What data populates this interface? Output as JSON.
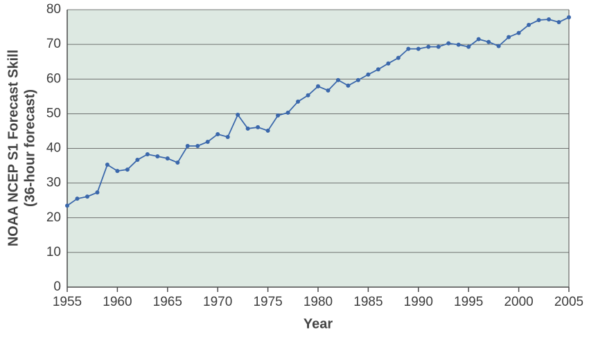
{
  "chart_data": {
    "type": "line",
    "xlabel": "Year",
    "ylabel": [
      "NOAA NCEP S1 Forecast Skill",
      "(36-hour forecast)"
    ],
    "x": [
      1955,
      1956,
      1957,
      1958,
      1959,
      1960,
      1961,
      1962,
      1963,
      1964,
      1965,
      1966,
      1967,
      1968,
      1969,
      1970,
      1971,
      1972,
      1973,
      1974,
      1975,
      1976,
      1977,
      1978,
      1979,
      1980,
      1981,
      1982,
      1983,
      1984,
      1985,
      1986,
      1987,
      1988,
      1989,
      1990,
      1991,
      1992,
      1993,
      1994,
      1995,
      1996,
      1997,
      1998,
      1999,
      2000,
      2001,
      2002,
      2003,
      2004,
      2005
    ],
    "values": [
      23.5,
      25.5,
      26.1,
      27.3,
      35.3,
      33.5,
      33.9,
      36.7,
      38.3,
      37.7,
      37.1,
      35.9,
      40.7,
      40.7,
      41.9,
      44.1,
      43.3,
      49.7,
      45.7,
      46.1,
      45.1,
      49.5,
      50.3,
      53.5,
      55.3,
      57.9,
      56.7,
      59.7,
      58.1,
      59.7,
      61.3,
      62.8,
      64.5,
      66.1,
      68.7,
      68.7,
      69.3,
      69.3,
      70.3,
      69.9,
      69.3,
      71.5,
      70.7,
      69.5,
      72.1,
      73.3,
      75.6,
      77.0,
      77.2,
      76.4,
      77.8
    ],
    "color": "#3a67ab",
    "xlim": [
      1955,
      2005
    ],
    "xticks": [
      1955,
      1960,
      1965,
      1970,
      1975,
      1980,
      1985,
      1990,
      1995,
      2000,
      2005
    ],
    "ylim": [
      0,
      80
    ],
    "yticks": [
      0,
      10,
      20,
      30,
      40,
      50,
      60,
      70,
      80
    ],
    "grid": true
  }
}
